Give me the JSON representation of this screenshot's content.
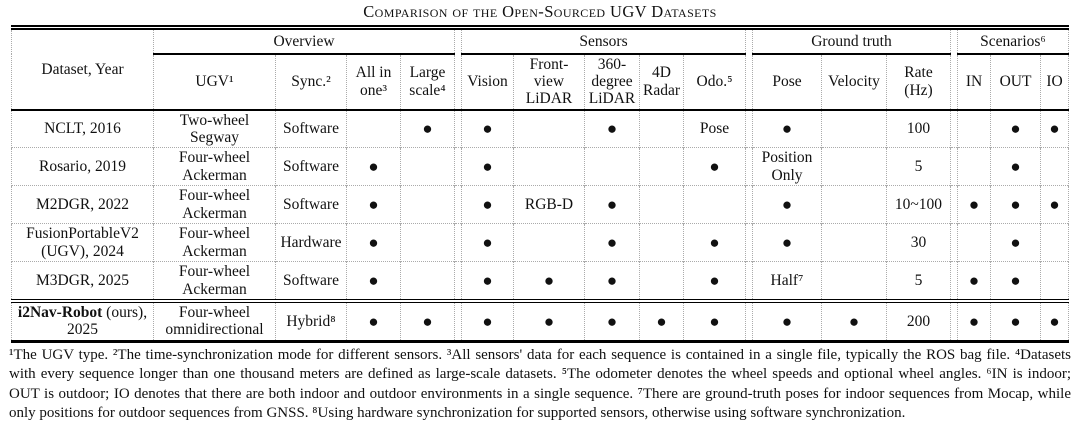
{
  "title": "Comparison of the Open-Sourced UGV Datasets",
  "table": {
    "corner_header": "Dataset, Year",
    "groups": [
      {
        "label": "Overview",
        "columns": [
          "UGV¹",
          "Sync.²",
          "All in one³",
          "Large scale⁴"
        ]
      },
      {
        "label": "Sensors",
        "columns": [
          "Vision",
          "Front-view LiDAR",
          "360-degree LiDAR",
          "4D Radar",
          "Odo.⁵"
        ]
      },
      {
        "label": "Ground truth",
        "columns": [
          "Pose",
          "Velocity",
          "Rate (Hz)"
        ]
      },
      {
        "label": "Scenarios⁶",
        "columns": [
          "IN",
          "OUT",
          "IO"
        ]
      }
    ],
    "column_ids": [
      "ugv",
      "sync",
      "all-in-one",
      "large-scale",
      "vision",
      "front-view-lidar",
      "360-degree-lidar",
      "4d-radar",
      "odo",
      "pose",
      "velocity",
      "rate-hz",
      "in",
      "out",
      "io"
    ],
    "dot_glyph": "●",
    "rows": [
      {
        "dataset": [
          {
            "text": "NCLT, 2016",
            "bold": false
          }
        ],
        "emphasized": false,
        "cells": [
          "Two-wheel Segway",
          "Software",
          "",
          "●",
          "●",
          "",
          "●",
          "",
          "Pose",
          "●",
          "",
          "100",
          "",
          "●",
          "●"
        ]
      },
      {
        "dataset": [
          {
            "text": "Rosario, 2019",
            "bold": false
          }
        ],
        "emphasized": false,
        "cells": [
          "Four-wheel Ackerman",
          "Software",
          "●",
          "",
          "●",
          "",
          "",
          "",
          "●",
          "Position Only",
          "",
          "5",
          "",
          "●",
          ""
        ]
      },
      {
        "dataset": [
          {
            "text": "M2DGR, 2022",
            "bold": false
          }
        ],
        "emphasized": false,
        "cells": [
          "Four-wheel Ackerman",
          "Software",
          "●",
          "",
          "●",
          "RGB-D",
          "●",
          "",
          "",
          "●",
          "",
          "10~100",
          "●",
          "●",
          "●"
        ]
      },
      {
        "dataset": [
          {
            "text": "FusionPortableV2 (UGV), 2024",
            "bold": false
          }
        ],
        "emphasized": false,
        "cells": [
          "Four-wheel Ackerman",
          "Hardware",
          "●",
          "",
          "●",
          "",
          "●",
          "",
          "●",
          "●",
          "",
          "30",
          "",
          "●",
          ""
        ]
      },
      {
        "dataset": [
          {
            "text": "M3DGR, 2025",
            "bold": false
          }
        ],
        "emphasized": false,
        "cells": [
          "Four-wheel Ackerman",
          "Software",
          "●",
          "",
          "●",
          "●",
          "●",
          "",
          "●",
          "Half⁷",
          "",
          "5",
          "●",
          "●",
          ""
        ]
      },
      {
        "dataset": [
          {
            "text": "i2Nav-Robot",
            "bold": true
          },
          {
            "text": " (ours), 2025",
            "bold": false
          }
        ],
        "emphasized": true,
        "cells": [
          "Four-wheel omnidirectional",
          "Hybrid⁸",
          "●",
          "●",
          "●",
          "●",
          "●",
          "●",
          "●",
          "●",
          "●",
          "200",
          "●",
          "●",
          "●"
        ]
      }
    ]
  },
  "footnotes": "¹The UGV type. ²The time-synchronization mode for different sensors. ³All sensors' data for each sequence is contained in a single file, typically the ROS bag file. ⁴Datasets with every sequence longer than one thousand meters are defined as large-scale datasets. ⁵The odometer denotes the wheel speeds and optional wheel angles. ⁶IN is indoor; OUT is outdoor; IO denotes that there are both indoor and outdoor environments in a single sequence. ⁷There are ground-truth poses for indoor sequences from Mocap, while only positions for outdoor sequences from GNSS. ⁸Using hardware synchronization for supported sensors, otherwise using software synchronization."
}
